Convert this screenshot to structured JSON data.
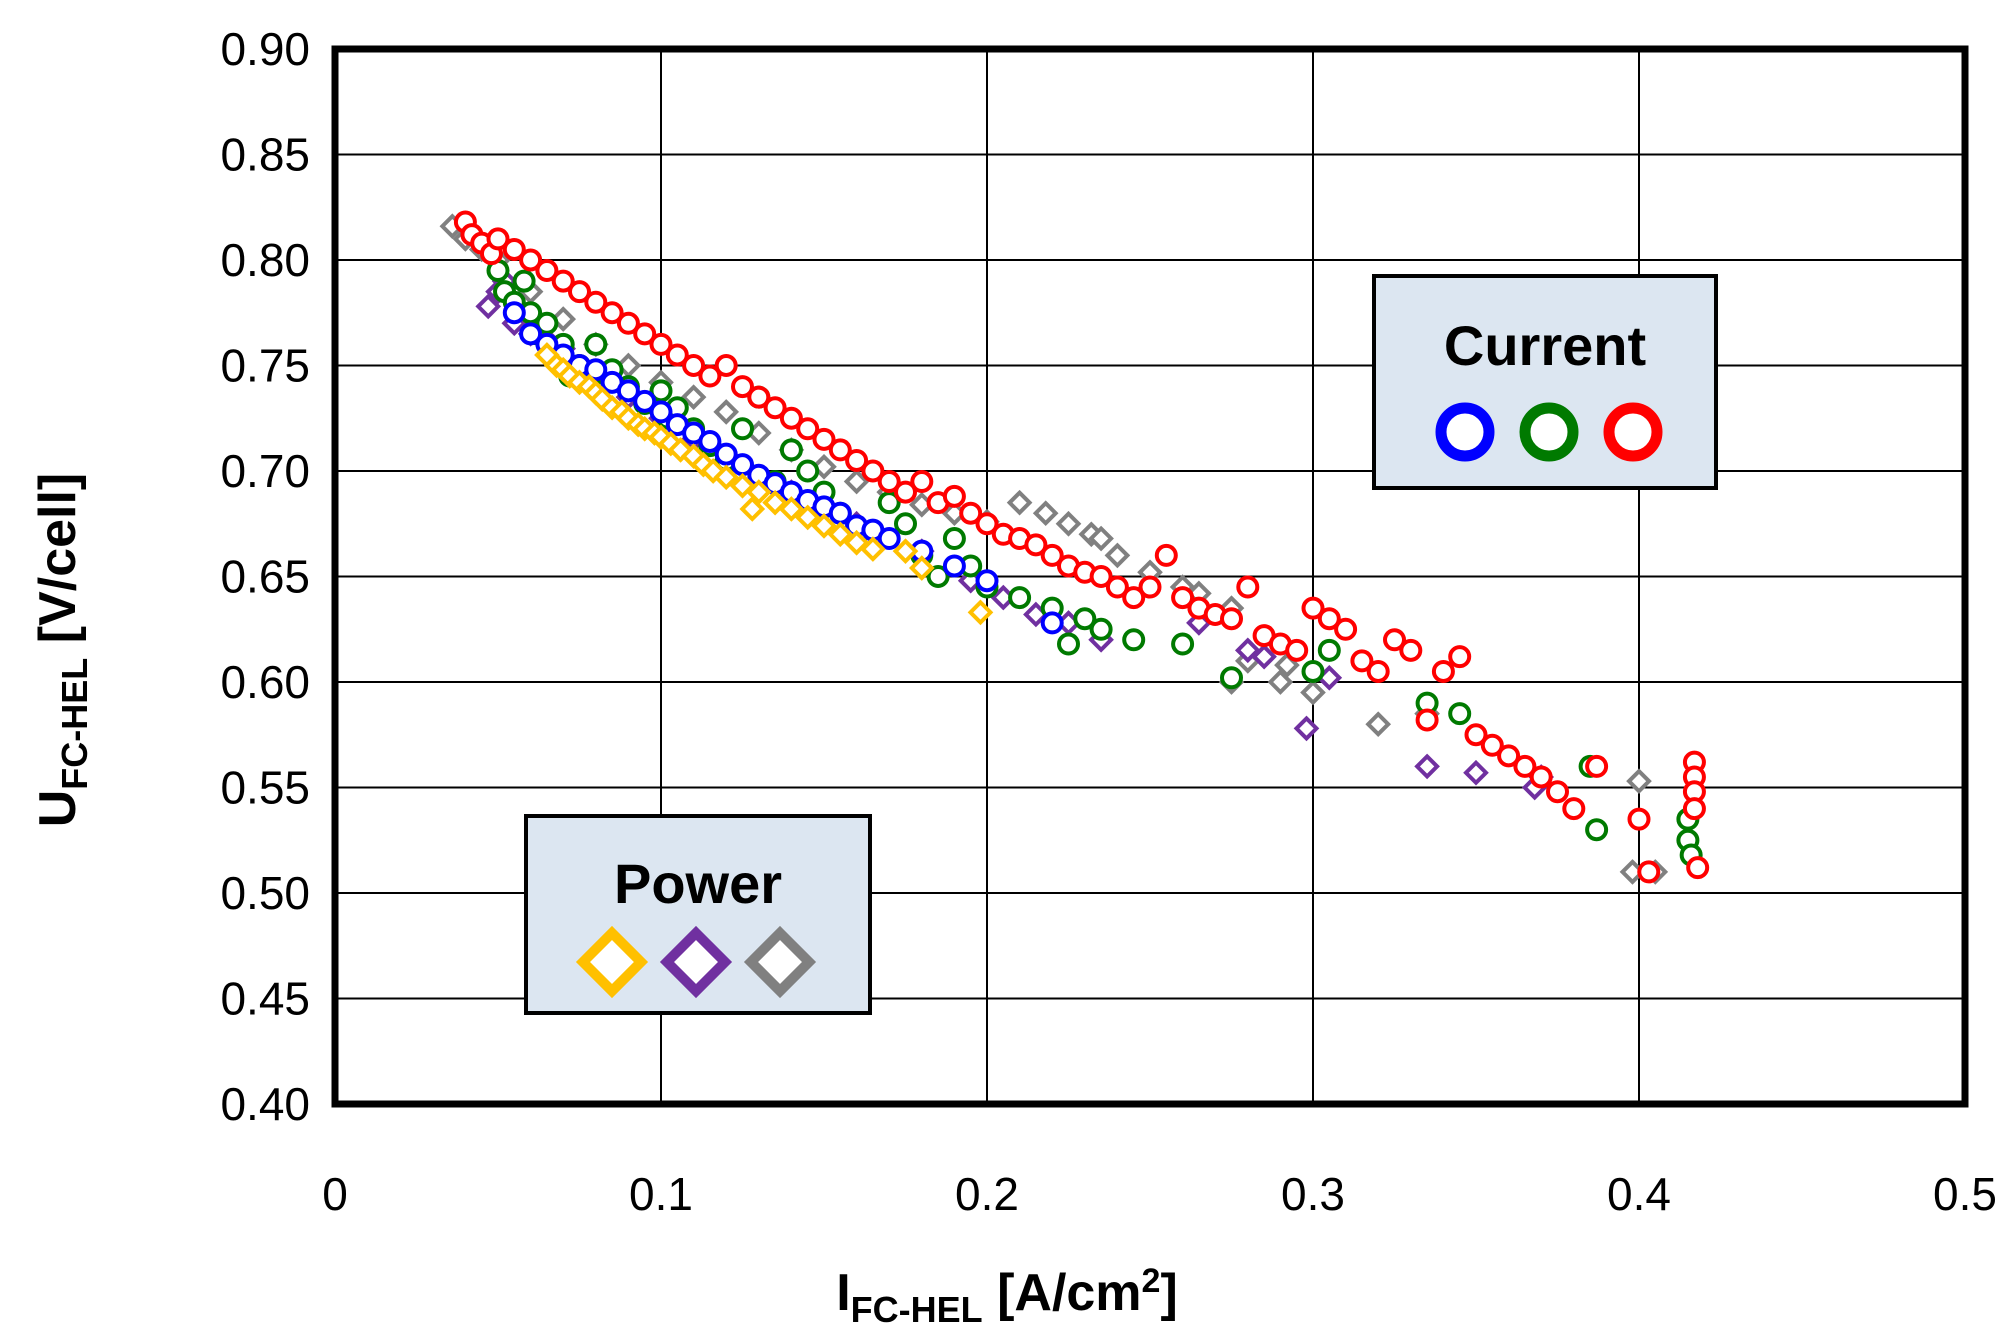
{
  "chart_data": {
    "type": "scatter",
    "title": "",
    "xlabel": {
      "main": "I",
      "sub": "FC-HEL",
      "unit": " [A/cm",
      "sup": "2",
      "close": "]"
    },
    "ylabel": {
      "main": "U",
      "sub": "FC-HEL",
      "unit": " [V/cell]"
    },
    "xlim": [
      0,
      0.5
    ],
    "ylim": [
      0.4,
      0.9
    ],
    "xticks": [
      0,
      0.1,
      0.2,
      0.3,
      0.4,
      0.5
    ],
    "xtick_labels": [
      "0",
      "0.1",
      "0.2",
      "0.3",
      "0.4",
      "0.5"
    ],
    "yticks": [
      0.4,
      0.45,
      0.5,
      0.55,
      0.6,
      0.65,
      0.7,
      0.75,
      0.8,
      0.85,
      0.9
    ],
    "ytick_labels": [
      "0.40",
      "0.45",
      "0.50",
      "0.55",
      "0.60",
      "0.65",
      "0.70",
      "0.75",
      "0.80",
      "0.85",
      "0.90"
    ],
    "grid": true,
    "legends": [
      {
        "title": "Current",
        "placement": "upper-right",
        "marker": "circle",
        "colors": [
          "#0000ff",
          "#007a00",
          "#ff0000"
        ]
      },
      {
        "title": "Power",
        "placement": "lower-left",
        "marker": "diamond",
        "colors": [
          "#ffc000",
          "#7030a0",
          "#808080"
        ]
      }
    ],
    "series": [
      {
        "name": "Current blue",
        "marker": "circle",
        "color": "#0000ff",
        "points": [
          [
            0.055,
            0.775
          ],
          [
            0.06,
            0.765
          ],
          [
            0.065,
            0.76
          ],
          [
            0.07,
            0.755
          ],
          [
            0.075,
            0.75
          ],
          [
            0.08,
            0.748
          ],
          [
            0.085,
            0.742
          ],
          [
            0.09,
            0.738
          ],
          [
            0.095,
            0.733
          ],
          [
            0.1,
            0.728
          ],
          [
            0.105,
            0.722
          ],
          [
            0.11,
            0.718
          ],
          [
            0.115,
            0.714
          ],
          [
            0.12,
            0.708
          ],
          [
            0.125,
            0.703
          ],
          [
            0.13,
            0.698
          ],
          [
            0.135,
            0.694
          ],
          [
            0.14,
            0.69
          ],
          [
            0.145,
            0.686
          ],
          [
            0.15,
            0.683
          ],
          [
            0.155,
            0.68
          ],
          [
            0.16,
            0.674
          ],
          [
            0.165,
            0.672
          ],
          [
            0.17,
            0.668
          ],
          [
            0.18,
            0.662
          ],
          [
            0.19,
            0.655
          ],
          [
            0.2,
            0.648
          ],
          [
            0.22,
            0.628
          ]
        ]
      },
      {
        "name": "Current green",
        "marker": "circle",
        "color": "#007a00",
        "points": [
          [
            0.05,
            0.795
          ],
          [
            0.052,
            0.785
          ],
          [
            0.055,
            0.78
          ],
          [
            0.058,
            0.79
          ],
          [
            0.06,
            0.775
          ],
          [
            0.062,
            0.765
          ],
          [
            0.065,
            0.77
          ],
          [
            0.068,
            0.755
          ],
          [
            0.07,
            0.76
          ],
          [
            0.072,
            0.745
          ],
          [
            0.075,
            0.75
          ],
          [
            0.078,
            0.742
          ],
          [
            0.08,
            0.76
          ],
          [
            0.085,
            0.748
          ],
          [
            0.09,
            0.74
          ],
          [
            0.095,
            0.732
          ],
          [
            0.1,
            0.738
          ],
          [
            0.102,
            0.725
          ],
          [
            0.105,
            0.73
          ],
          [
            0.11,
            0.72
          ],
          [
            0.115,
            0.712
          ],
          [
            0.12,
            0.705
          ],
          [
            0.125,
            0.72
          ],
          [
            0.13,
            0.735
          ],
          [
            0.135,
            0.695
          ],
          [
            0.14,
            0.71
          ],
          [
            0.145,
            0.7
          ],
          [
            0.15,
            0.69
          ],
          [
            0.155,
            0.68
          ],
          [
            0.16,
            0.67
          ],
          [
            0.165,
            0.665
          ],
          [
            0.17,
            0.685
          ],
          [
            0.175,
            0.675
          ],
          [
            0.18,
            0.66
          ],
          [
            0.185,
            0.65
          ],
          [
            0.19,
            0.668
          ],
          [
            0.195,
            0.655
          ],
          [
            0.2,
            0.645
          ],
          [
            0.21,
            0.64
          ],
          [
            0.22,
            0.635
          ],
          [
            0.225,
            0.618
          ],
          [
            0.23,
            0.63
          ],
          [
            0.235,
            0.625
          ],
          [
            0.245,
            0.62
          ],
          [
            0.26,
            0.618
          ],
          [
            0.275,
            0.602
          ],
          [
            0.3,
            0.605
          ],
          [
            0.305,
            0.615
          ],
          [
            0.335,
            0.59
          ],
          [
            0.345,
            0.585
          ],
          [
            0.385,
            0.56
          ],
          [
            0.387,
            0.53
          ],
          [
            0.415,
            0.535
          ],
          [
            0.415,
            0.525
          ],
          [
            0.416,
            0.518
          ]
        ]
      },
      {
        "name": "Current red",
        "marker": "circle",
        "color": "#ff0000",
        "points": [
          [
            0.04,
            0.818
          ],
          [
            0.042,
            0.812
          ],
          [
            0.045,
            0.808
          ],
          [
            0.048,
            0.803
          ],
          [
            0.05,
            0.81
          ],
          [
            0.055,
            0.805
          ],
          [
            0.06,
            0.8
          ],
          [
            0.065,
            0.795
          ],
          [
            0.07,
            0.79
          ],
          [
            0.075,
            0.785
          ],
          [
            0.08,
            0.78
          ],
          [
            0.085,
            0.775
          ],
          [
            0.09,
            0.77
          ],
          [
            0.095,
            0.765
          ],
          [
            0.1,
            0.76
          ],
          [
            0.105,
            0.755
          ],
          [
            0.11,
            0.75
          ],
          [
            0.115,
            0.745
          ],
          [
            0.12,
            0.75
          ],
          [
            0.125,
            0.74
          ],
          [
            0.13,
            0.735
          ],
          [
            0.135,
            0.73
          ],
          [
            0.14,
            0.725
          ],
          [
            0.145,
            0.72
          ],
          [
            0.15,
            0.715
          ],
          [
            0.155,
            0.71
          ],
          [
            0.16,
            0.705
          ],
          [
            0.165,
            0.7
          ],
          [
            0.17,
            0.695
          ],
          [
            0.175,
            0.69
          ],
          [
            0.18,
            0.695
          ],
          [
            0.185,
            0.685
          ],
          [
            0.19,
            0.688
          ],
          [
            0.195,
            0.68
          ],
          [
            0.2,
            0.675
          ],
          [
            0.205,
            0.67
          ],
          [
            0.21,
            0.668
          ],
          [
            0.215,
            0.665
          ],
          [
            0.22,
            0.66
          ],
          [
            0.225,
            0.655
          ],
          [
            0.23,
            0.652
          ],
          [
            0.235,
            0.65
          ],
          [
            0.24,
            0.645
          ],
          [
            0.245,
            0.64
          ],
          [
            0.25,
            0.645
          ],
          [
            0.255,
            0.66
          ],
          [
            0.26,
            0.64
          ],
          [
            0.265,
            0.635
          ],
          [
            0.27,
            0.632
          ],
          [
            0.275,
            0.63
          ],
          [
            0.28,
            0.645
          ],
          [
            0.285,
            0.622
          ],
          [
            0.29,
            0.618
          ],
          [
            0.295,
            0.615
          ],
          [
            0.3,
            0.635
          ],
          [
            0.305,
            0.63
          ],
          [
            0.31,
            0.625
          ],
          [
            0.315,
            0.61
          ],
          [
            0.32,
            0.605
          ],
          [
            0.325,
            0.62
          ],
          [
            0.33,
            0.615
          ],
          [
            0.335,
            0.582
          ],
          [
            0.34,
            0.605
          ],
          [
            0.345,
            0.612
          ],
          [
            0.35,
            0.575
          ],
          [
            0.355,
            0.57
          ],
          [
            0.36,
            0.565
          ],
          [
            0.365,
            0.56
          ],
          [
            0.37,
            0.555
          ],
          [
            0.375,
            0.548
          ],
          [
            0.38,
            0.54
          ],
          [
            0.387,
            0.56
          ],
          [
            0.4,
            0.535
          ],
          [
            0.403,
            0.51
          ],
          [
            0.417,
            0.562
          ],
          [
            0.417,
            0.555
          ],
          [
            0.417,
            0.548
          ],
          [
            0.417,
            0.54
          ],
          [
            0.418,
            0.512
          ]
        ]
      },
      {
        "name": "Power yellow",
        "marker": "diamond",
        "color": "#ffc000",
        "points": [
          [
            0.065,
            0.755
          ],
          [
            0.068,
            0.75
          ],
          [
            0.07,
            0.748
          ],
          [
            0.072,
            0.745
          ],
          [
            0.075,
            0.742
          ],
          [
            0.078,
            0.74
          ],
          [
            0.08,
            0.737
          ],
          [
            0.082,
            0.734
          ],
          [
            0.085,
            0.73
          ],
          [
            0.088,
            0.728
          ],
          [
            0.09,
            0.725
          ],
          [
            0.093,
            0.722
          ],
          [
            0.095,
            0.72
          ],
          [
            0.098,
            0.718
          ],
          [
            0.1,
            0.716
          ],
          [
            0.103,
            0.713
          ],
          [
            0.106,
            0.71
          ],
          [
            0.11,
            0.707
          ],
          [
            0.113,
            0.703
          ],
          [
            0.116,
            0.7
          ],
          [
            0.12,
            0.697
          ],
          [
            0.125,
            0.693
          ],
          [
            0.128,
            0.682
          ],
          [
            0.13,
            0.69
          ],
          [
            0.135,
            0.685
          ],
          [
            0.14,
            0.682
          ],
          [
            0.145,
            0.678
          ],
          [
            0.15,
            0.674
          ],
          [
            0.155,
            0.67
          ],
          [
            0.16,
            0.666
          ],
          [
            0.165,
            0.663
          ],
          [
            0.175,
            0.662
          ],
          [
            0.18,
            0.654
          ],
          [
            0.198,
            0.633
          ]
        ]
      },
      {
        "name": "Power purple",
        "marker": "diamond",
        "color": "#7030a0",
        "points": [
          [
            0.047,
            0.778
          ],
          [
            0.05,
            0.785
          ],
          [
            0.052,
            0.79
          ],
          [
            0.055,
            0.77
          ],
          [
            0.06,
            0.765
          ],
          [
            0.065,
            0.762
          ],
          [
            0.07,
            0.758
          ],
          [
            0.08,
            0.745
          ],
          [
            0.09,
            0.735
          ],
          [
            0.1,
            0.725
          ],
          [
            0.11,
            0.715
          ],
          [
            0.12,
            0.705
          ],
          [
            0.13,
            0.695
          ],
          [
            0.14,
            0.69
          ],
          [
            0.15,
            0.682
          ],
          [
            0.16,
            0.675
          ],
          [
            0.18,
            0.662
          ],
          [
            0.195,
            0.648
          ],
          [
            0.205,
            0.64
          ],
          [
            0.215,
            0.632
          ],
          [
            0.225,
            0.628
          ],
          [
            0.235,
            0.62
          ],
          [
            0.265,
            0.628
          ],
          [
            0.28,
            0.615
          ],
          [
            0.285,
            0.612
          ],
          [
            0.298,
            0.578
          ],
          [
            0.305,
            0.602
          ],
          [
            0.335,
            0.56
          ],
          [
            0.35,
            0.557
          ],
          [
            0.37,
            0.555
          ],
          [
            0.368,
            0.55
          ]
        ]
      },
      {
        "name": "Power gray",
        "marker": "diamond",
        "color": "#808080",
        "points": [
          [
            0.036,
            0.816
          ],
          [
            0.04,
            0.81
          ],
          [
            0.045,
            0.805
          ],
          [
            0.05,
            0.8
          ],
          [
            0.06,
            0.785
          ],
          [
            0.07,
            0.772
          ],
          [
            0.08,
            0.76
          ],
          [
            0.09,
            0.75
          ],
          [
            0.1,
            0.742
          ],
          [
            0.11,
            0.735
          ],
          [
            0.12,
            0.728
          ],
          [
            0.13,
            0.718
          ],
          [
            0.14,
            0.71
          ],
          [
            0.15,
            0.702
          ],
          [
            0.16,
            0.695
          ],
          [
            0.17,
            0.69
          ],
          [
            0.18,
            0.684
          ],
          [
            0.19,
            0.68
          ],
          [
            0.2,
            0.676
          ],
          [
            0.21,
            0.685
          ],
          [
            0.218,
            0.68
          ],
          [
            0.225,
            0.675
          ],
          [
            0.232,
            0.67
          ],
          [
            0.235,
            0.668
          ],
          [
            0.24,
            0.66
          ],
          [
            0.25,
            0.652
          ],
          [
            0.26,
            0.645
          ],
          [
            0.265,
            0.642
          ],
          [
            0.275,
            0.635
          ],
          [
            0.275,
            0.6
          ],
          [
            0.28,
            0.61
          ],
          [
            0.29,
            0.6
          ],
          [
            0.292,
            0.608
          ],
          [
            0.3,
            0.595
          ],
          [
            0.32,
            0.58
          ],
          [
            0.335,
            0.585
          ],
          [
            0.4,
            0.553
          ],
          [
            0.398,
            0.51
          ],
          [
            0.405,
            0.51
          ]
        ]
      }
    ]
  }
}
